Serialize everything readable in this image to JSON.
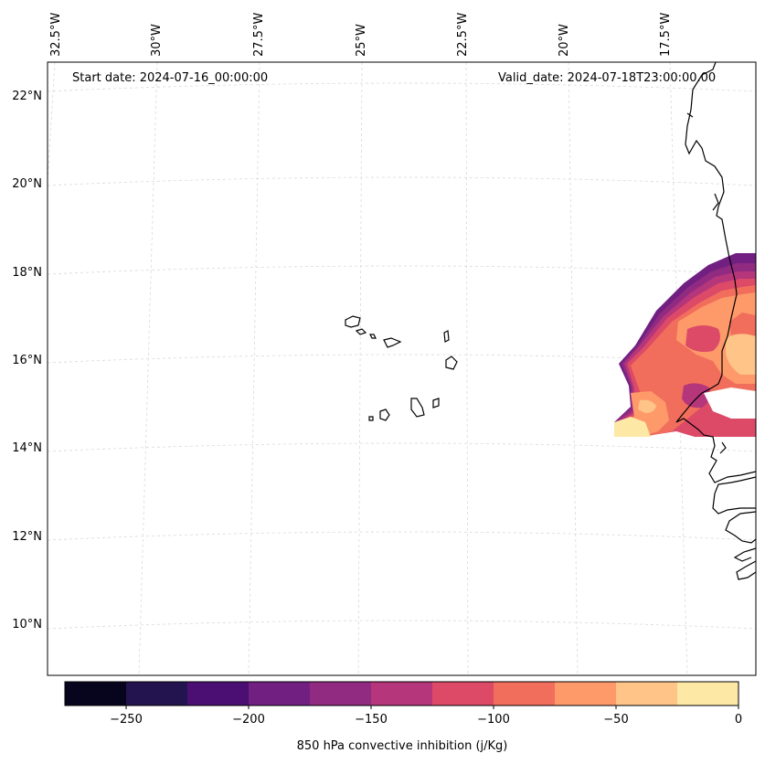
{
  "header": {
    "start_date": "Start date: 2024-07-16_00:00:00",
    "valid_date": "Valid_date: 2024-07-18T23:00:00.00"
  },
  "longitude_labels": [
    "32.5°W",
    "30°W",
    "27.5°W",
    "25°W",
    "22.5°W",
    "20°W",
    "17.5°W"
  ],
  "latitude_labels": [
    "22°N",
    "20°N",
    "18°N",
    "16°N",
    "14°N",
    "12°N",
    "10°N"
  ],
  "colorbar": {
    "label": "850 hPa convective inhibition (j/Kg)",
    "ticks": [
      "−250",
      "−200",
      "−150",
      "−100",
      "−50",
      "0"
    ],
    "levels": [
      -275,
      -250,
      -225,
      -200,
      -175,
      -150,
      -125,
      -100,
      -75,
      -50,
      -25,
      0
    ],
    "colors": [
      "#07051e",
      "#231450",
      "#4b0f73",
      "#711f81",
      "#912b81",
      "#b5367a",
      "#dc4a68",
      "#f26e5c",
      "#fe9a6a",
      "#fec488",
      "#fde8a6"
    ]
  },
  "map": {
    "variable": "850 hPa convective inhibition",
    "units": "j/Kg",
    "coastline_color": "#000000",
    "gridline_color": "#cccccc"
  }
}
